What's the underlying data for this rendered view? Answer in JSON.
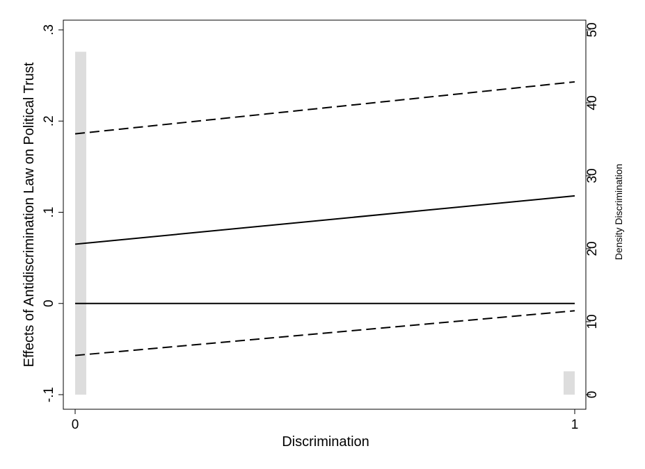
{
  "chart_data": {
    "type": "line",
    "xlabel": "Discrimination",
    "ylabel": "Effects of Antidiscrimination Law on Political Trust",
    "y2label": "Density Discrimination",
    "x_ticks": [
      0,
      1
    ],
    "y_ticks": [
      -0.1,
      0,
      0.1,
      0.2,
      0.3
    ],
    "y_tick_labels": [
      "-.1",
      "0",
      ".1",
      ".2",
      ".3"
    ],
    "y2_ticks": [
      0,
      10,
      20,
      30,
      40,
      50
    ],
    "xlim": [
      0,
      1
    ],
    "ylim": [
      -0.1,
      0.3
    ],
    "y2lim": [
      0,
      50
    ],
    "grid": false,
    "series": [
      {
        "style": "solid",
        "color": "#000000",
        "x": [
          0,
          1
        ],
        "y": [
          0.065,
          0.118
        ]
      },
      {
        "style": "dashed",
        "color": "#000000",
        "x": [
          0,
          1
        ],
        "y": [
          0.186,
          0.243
        ]
      },
      {
        "style": "dashed",
        "color": "#000000",
        "x": [
          0,
          1
        ],
        "y": [
          -0.057,
          -0.008
        ]
      },
      {
        "style": "solid",
        "color": "#000000",
        "x": [
          0,
          1
        ],
        "y": [
          0,
          0
        ]
      }
    ],
    "density_bars": {
      "color": "#dddddd",
      "x": [
        0,
        1
      ],
      "density": [
        47,
        3.2
      ]
    }
  }
}
